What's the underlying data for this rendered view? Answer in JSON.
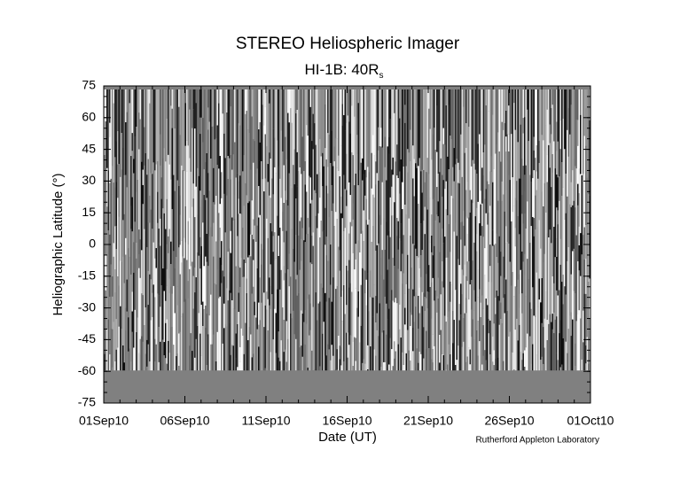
{
  "chart_data": {
    "type": "heatmap",
    "title": "STEREO Heliospheric Imager",
    "subtitle": "HI-1B: 40R",
    "subtitle_subscript": "s",
    "x_label": "Date (UT)",
    "y_label": "Heliographic Latitude (°)",
    "credit": "Rutherford Appleton Laboratory",
    "xticks": [
      "01Sep10",
      "06Sep10",
      "11Sep10",
      "16Sep10",
      "21Sep10",
      "26Sep10",
      "01Oct10"
    ],
    "ylim": [
      -75,
      75
    ],
    "yticks": [
      -75,
      -60,
      -45,
      -30,
      -15,
      0,
      15,
      30,
      45,
      60,
      75
    ]
  }
}
